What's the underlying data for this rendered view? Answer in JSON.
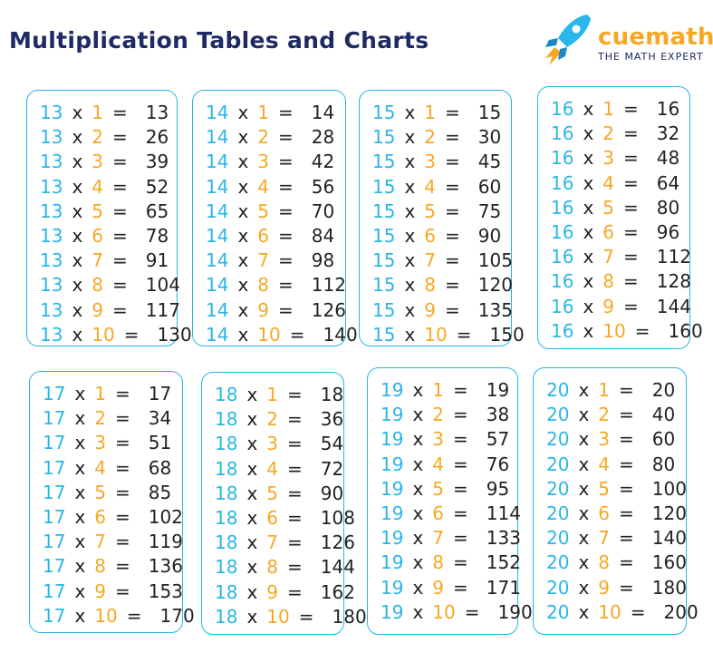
{
  "title": "Multiplication Tables and Charts",
  "logo": {
    "brand": "cuemath",
    "tagline": "THE MATH EXPERT",
    "icon": "rocket-icon",
    "colors": {
      "rocket": "#29b6e8",
      "flame": "#f7a823",
      "brand": "#f7a823"
    }
  },
  "colors": {
    "border": "#29b6e8",
    "base": "#29b6e8",
    "multiplier": "#f7a823",
    "text": "#222222"
  },
  "tables": [
    {
      "base": 13,
      "rows": [
        {
          "base": "13",
          "op": "x",
          "mult": "1",
          "eq": "=",
          "result": "13"
        },
        {
          "base": "13",
          "op": "x",
          "mult": "2",
          "eq": "=",
          "result": "26"
        },
        {
          "base": "13",
          "op": "x",
          "mult": "3",
          "eq": "=",
          "result": "39"
        },
        {
          "base": "13",
          "op": "x",
          "mult": "4",
          "eq": "=",
          "result": "52"
        },
        {
          "base": "13",
          "op": "x",
          "mult": "5",
          "eq": "=",
          "result": "65"
        },
        {
          "base": "13",
          "op": "x",
          "mult": "6",
          "eq": "=",
          "result": "78"
        },
        {
          "base": "13",
          "op": "x",
          "mult": "7",
          "eq": "=",
          "result": "91"
        },
        {
          "base": "13",
          "op": "x",
          "mult": "8",
          "eq": "=",
          "result": "104"
        },
        {
          "base": "13",
          "op": "x",
          "mult": "9",
          "eq": "=",
          "result": "117"
        },
        {
          "base": "13",
          "op": "x",
          "mult": "10",
          "eq": "=",
          "result": "130"
        }
      ]
    },
    {
      "base": 14,
      "rows": [
        {
          "base": "14",
          "op": "x",
          "mult": "1",
          "eq": "=",
          "result": "14"
        },
        {
          "base": "14",
          "op": "x",
          "mult": "2",
          "eq": "=",
          "result": "28"
        },
        {
          "base": "14",
          "op": "x",
          "mult": "3",
          "eq": "=",
          "result": "42"
        },
        {
          "base": "14",
          "op": "x",
          "mult": "4",
          "eq": "=",
          "result": "56"
        },
        {
          "base": "14",
          "op": "x",
          "mult": "5",
          "eq": "=",
          "result": "70"
        },
        {
          "base": "14",
          "op": "x",
          "mult": "6",
          "eq": "=",
          "result": "84"
        },
        {
          "base": "14",
          "op": "x",
          "mult": "7",
          "eq": "=",
          "result": "98"
        },
        {
          "base": "14",
          "op": "x",
          "mult": "8",
          "eq": "=",
          "result": "112"
        },
        {
          "base": "14",
          "op": "x",
          "mult": "9",
          "eq": "=",
          "result": "126"
        },
        {
          "base": "14",
          "op": "x",
          "mult": "10",
          "eq": "=",
          "result": "140"
        }
      ]
    },
    {
      "base": 15,
      "rows": [
        {
          "base": "15",
          "op": "x",
          "mult": "1",
          "eq": "=",
          "result": "15"
        },
        {
          "base": "15",
          "op": "x",
          "mult": "2",
          "eq": "=",
          "result": "30"
        },
        {
          "base": "15",
          "op": "x",
          "mult": "3",
          "eq": "=",
          "result": "45"
        },
        {
          "base": "15",
          "op": "x",
          "mult": "4",
          "eq": "=",
          "result": "60"
        },
        {
          "base": "15",
          "op": "x",
          "mult": "5",
          "eq": "=",
          "result": "75"
        },
        {
          "base": "15",
          "op": "x",
          "mult": "6",
          "eq": "=",
          "result": "90"
        },
        {
          "base": "15",
          "op": "x",
          "mult": "7",
          "eq": "=",
          "result": "105"
        },
        {
          "base": "15",
          "op": "x",
          "mult": "8",
          "eq": "=",
          "result": "120"
        },
        {
          "base": "15",
          "op": "x",
          "mult": "9",
          "eq": "=",
          "result": "135"
        },
        {
          "base": "15",
          "op": "x",
          "mult": "10",
          "eq": "=",
          "result": "150"
        }
      ]
    },
    {
      "base": 16,
      "rows": [
        {
          "base": "16",
          "op": "x",
          "mult": "1",
          "eq": "=",
          "result": "16"
        },
        {
          "base": "16",
          "op": "x",
          "mult": "2",
          "eq": "=",
          "result": "32"
        },
        {
          "base": "16",
          "op": "x",
          "mult": "3",
          "eq": "=",
          "result": "48"
        },
        {
          "base": "16",
          "op": "x",
          "mult": "4",
          "eq": "=",
          "result": "64"
        },
        {
          "base": "16",
          "op": "x",
          "mult": "5",
          "eq": "=",
          "result": "80"
        },
        {
          "base": "16",
          "op": "x",
          "mult": "6",
          "eq": "=",
          "result": "96"
        },
        {
          "base": "16",
          "op": "x",
          "mult": "7",
          "eq": "=",
          "result": "112"
        },
        {
          "base": "16",
          "op": "x",
          "mult": "8",
          "eq": "=",
          "result": "128"
        },
        {
          "base": "16",
          "op": "x",
          "mult": "9",
          "eq": "=",
          "result": "144"
        },
        {
          "base": "16",
          "op": "x",
          "mult": "10",
          "eq": "=",
          "result": "160"
        }
      ]
    },
    {
      "base": 17,
      "rows": [
        {
          "base": "17",
          "op": "x",
          "mult": "1",
          "eq": "=",
          "result": "17"
        },
        {
          "base": "17",
          "op": "x",
          "mult": "2",
          "eq": "=",
          "result": "34"
        },
        {
          "base": "17",
          "op": "x",
          "mult": "3",
          "eq": "=",
          "result": "51"
        },
        {
          "base": "17",
          "op": "x",
          "mult": "4",
          "eq": "=",
          "result": "68"
        },
        {
          "base": "17",
          "op": "x",
          "mult": "5",
          "eq": "=",
          "result": "85"
        },
        {
          "base": "17",
          "op": "x",
          "mult": "6",
          "eq": "=",
          "result": "102"
        },
        {
          "base": "17",
          "op": "x",
          "mult": "7",
          "eq": "=",
          "result": "119"
        },
        {
          "base": "17",
          "op": "x",
          "mult": "8",
          "eq": "=",
          "result": "136"
        },
        {
          "base": "17",
          "op": "x",
          "mult": "9",
          "eq": "=",
          "result": "153"
        },
        {
          "base": "17",
          "op": "x",
          "mult": "10",
          "eq": "=",
          "result": "170"
        }
      ]
    },
    {
      "base": 18,
      "rows": [
        {
          "base": "18",
          "op": "x",
          "mult": "1",
          "eq": "=",
          "result": "18"
        },
        {
          "base": "18",
          "op": "x",
          "mult": "2",
          "eq": "=",
          "result": "36"
        },
        {
          "base": "18",
          "op": "x",
          "mult": "3",
          "eq": "=",
          "result": "54"
        },
        {
          "base": "18",
          "op": "x",
          "mult": "4",
          "eq": "=",
          "result": "72"
        },
        {
          "base": "18",
          "op": "x",
          "mult": "5",
          "eq": "=",
          "result": "90"
        },
        {
          "base": "18",
          "op": "x",
          "mult": "6",
          "eq": "=",
          "result": "108"
        },
        {
          "base": "18",
          "op": "x",
          "mult": "7",
          "eq": "=",
          "result": "126"
        },
        {
          "base": "18",
          "op": "x",
          "mult": "8",
          "eq": "=",
          "result": "144"
        },
        {
          "base": "18",
          "op": "x",
          "mult": "9",
          "eq": "=",
          "result": "162"
        },
        {
          "base": "18",
          "op": "x",
          "mult": "10",
          "eq": "=",
          "result": "180"
        }
      ]
    },
    {
      "base": 19,
      "rows": [
        {
          "base": "19",
          "op": "x",
          "mult": "1",
          "eq": "=",
          "result": "19"
        },
        {
          "base": "19",
          "op": "x",
          "mult": "2",
          "eq": "=",
          "result": "38"
        },
        {
          "base": "19",
          "op": "x",
          "mult": "3",
          "eq": "=",
          "result": "57"
        },
        {
          "base": "19",
          "op": "x",
          "mult": "4",
          "eq": "=",
          "result": "76"
        },
        {
          "base": "19",
          "op": "x",
          "mult": "5",
          "eq": "=",
          "result": "95"
        },
        {
          "base": "19",
          "op": "x",
          "mult": "6",
          "eq": "=",
          "result": "114"
        },
        {
          "base": "19",
          "op": "x",
          "mult": "7",
          "eq": "=",
          "result": "133"
        },
        {
          "base": "19",
          "op": "x",
          "mult": "8",
          "eq": "=",
          "result": "152"
        },
        {
          "base": "19",
          "op": "x",
          "mult": "9",
          "eq": "=",
          "result": "171"
        },
        {
          "base": "19",
          "op": "x",
          "mult": "10",
          "eq": "=",
          "result": "190"
        }
      ]
    },
    {
      "base": 20,
      "rows": [
        {
          "base": "20",
          "op": "x",
          "mult": "1",
          "eq": "=",
          "result": "20"
        },
        {
          "base": "20",
          "op": "x",
          "mult": "2",
          "eq": "=",
          "result": "40"
        },
        {
          "base": "20",
          "op": "x",
          "mult": "3",
          "eq": "=",
          "result": "60"
        },
        {
          "base": "20",
          "op": "x",
          "mult": "4",
          "eq": "=",
          "result": "80"
        },
        {
          "base": "20",
          "op": "x",
          "mult": "5",
          "eq": "=",
          "result": "100"
        },
        {
          "base": "20",
          "op": "x",
          "mult": "6",
          "eq": "=",
          "result": "120"
        },
        {
          "base": "20",
          "op": "x",
          "mult": "7",
          "eq": "=",
          "result": "140"
        },
        {
          "base": "20",
          "op": "x",
          "mult": "8",
          "eq": "=",
          "result": "160"
        },
        {
          "base": "20",
          "op": "x",
          "mult": "9",
          "eq": "=",
          "result": "180"
        },
        {
          "base": "20",
          "op": "x",
          "mult": "10",
          "eq": "=",
          "result": "200"
        }
      ]
    }
  ]
}
